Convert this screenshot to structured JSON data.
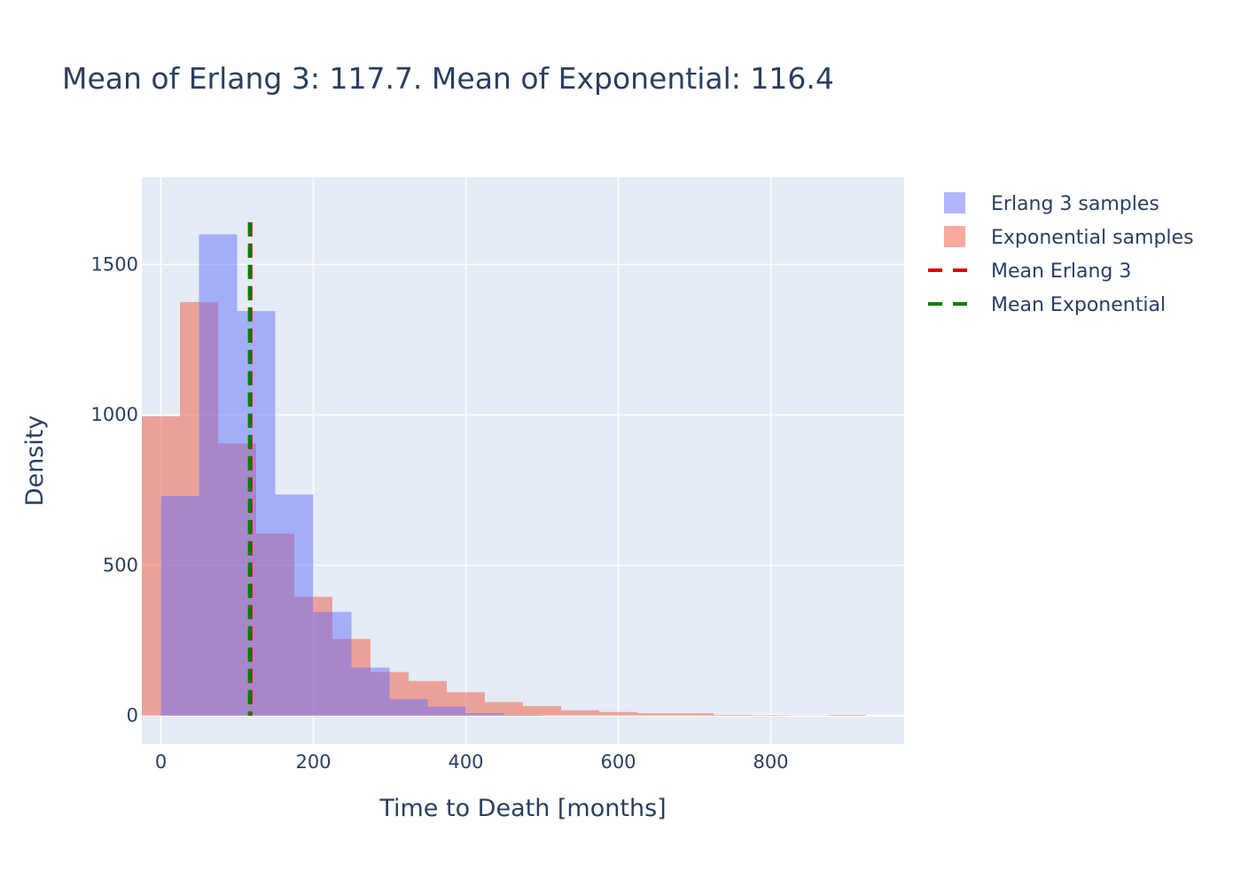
{
  "chart_data": {
    "type": "bar",
    "title": "Mean of Erlang 3: 117.7.   Mean of Exponential: 116.4",
    "xlabel": "Time to Death [months]",
    "ylabel": "Density",
    "xlim": [
      -25,
      975
    ],
    "ylim": [
      -95,
      1790
    ],
    "xticks": [
      0,
      200,
      400,
      600,
      800
    ],
    "yticks": [
      0,
      500,
      1000,
      1500
    ],
    "grid": true,
    "legend_position": "top-right",
    "series": [
      {
        "name": "Erlang 3 samples",
        "color": "#636efa",
        "opacity": 0.5,
        "bin_width": 50,
        "bins_start": [
          0,
          50,
          100,
          150,
          200,
          250,
          300,
          350,
          400,
          450
        ],
        "counts": [
          730,
          1600,
          1345,
          735,
          345,
          160,
          55,
          30,
          8,
          2
        ]
      },
      {
        "name": "Exponential samples",
        "color": "#ef553b",
        "opacity": 0.5,
        "bin_width": 50,
        "bins_start": [
          -25,
          25,
          75,
          125,
          175,
          225,
          275,
          325,
          375,
          425,
          475,
          525,
          575,
          625,
          675,
          725,
          775,
          825,
          875
        ],
        "counts": [
          995,
          1375,
          905,
          605,
          395,
          255,
          145,
          115,
          78,
          45,
          32,
          18,
          12,
          8,
          8,
          3,
          2,
          1,
          3
        ]
      }
    ],
    "lines": [
      {
        "name": "Mean Erlang 3",
        "x": 117.7,
        "color": "#e00000",
        "dash": "dash"
      },
      {
        "name": "Mean Exponential",
        "x": 116.4,
        "color": "#008000",
        "dash": "dash"
      }
    ]
  }
}
